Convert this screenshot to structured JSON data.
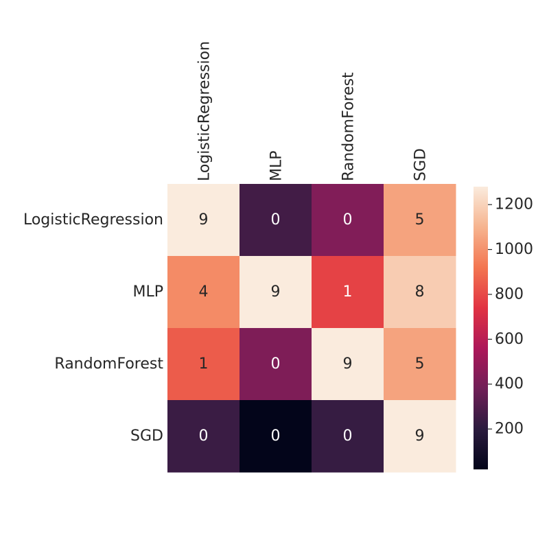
{
  "chart_data": {
    "type": "heatmap",
    "x_categories": [
      "LogisticRegression",
      "MLP",
      "RandomForest",
      "SGD"
    ],
    "y_categories": [
      "LogisticRegression",
      "MLP",
      "RandomForest",
      "SGD"
    ],
    "values": [
      [
        1280,
        260,
        430,
        1050
      ],
      [
        980,
        1280,
        780,
        1180
      ],
      [
        850,
        420,
        1280,
        1050
      ],
      [
        240,
        20,
        230,
        1280
      ]
    ],
    "annotations": [
      [
        "9",
        "0",
        "0",
        "5"
      ],
      [
        "4",
        "9",
        "1",
        "8"
      ],
      [
        "1",
        "0",
        "9",
        "5"
      ],
      [
        "0",
        "0",
        "0",
        "9"
      ]
    ],
    "colorbar": {
      "min": 20,
      "max": 1280,
      "ticks": [
        200,
        400,
        600,
        800,
        1000,
        1200
      ],
      "tick_labels": [
        "200",
        "400",
        "600",
        "800",
        "1000",
        "1200"
      ]
    },
    "colormap": [
      "#03051a",
      "#2b1b3e",
      "#701f57",
      "#ad1759",
      "#e13342",
      "#f37651",
      "#f6b48f",
      "#faebdd"
    ],
    "xlabel": "",
    "ylabel": "",
    "title": ""
  }
}
